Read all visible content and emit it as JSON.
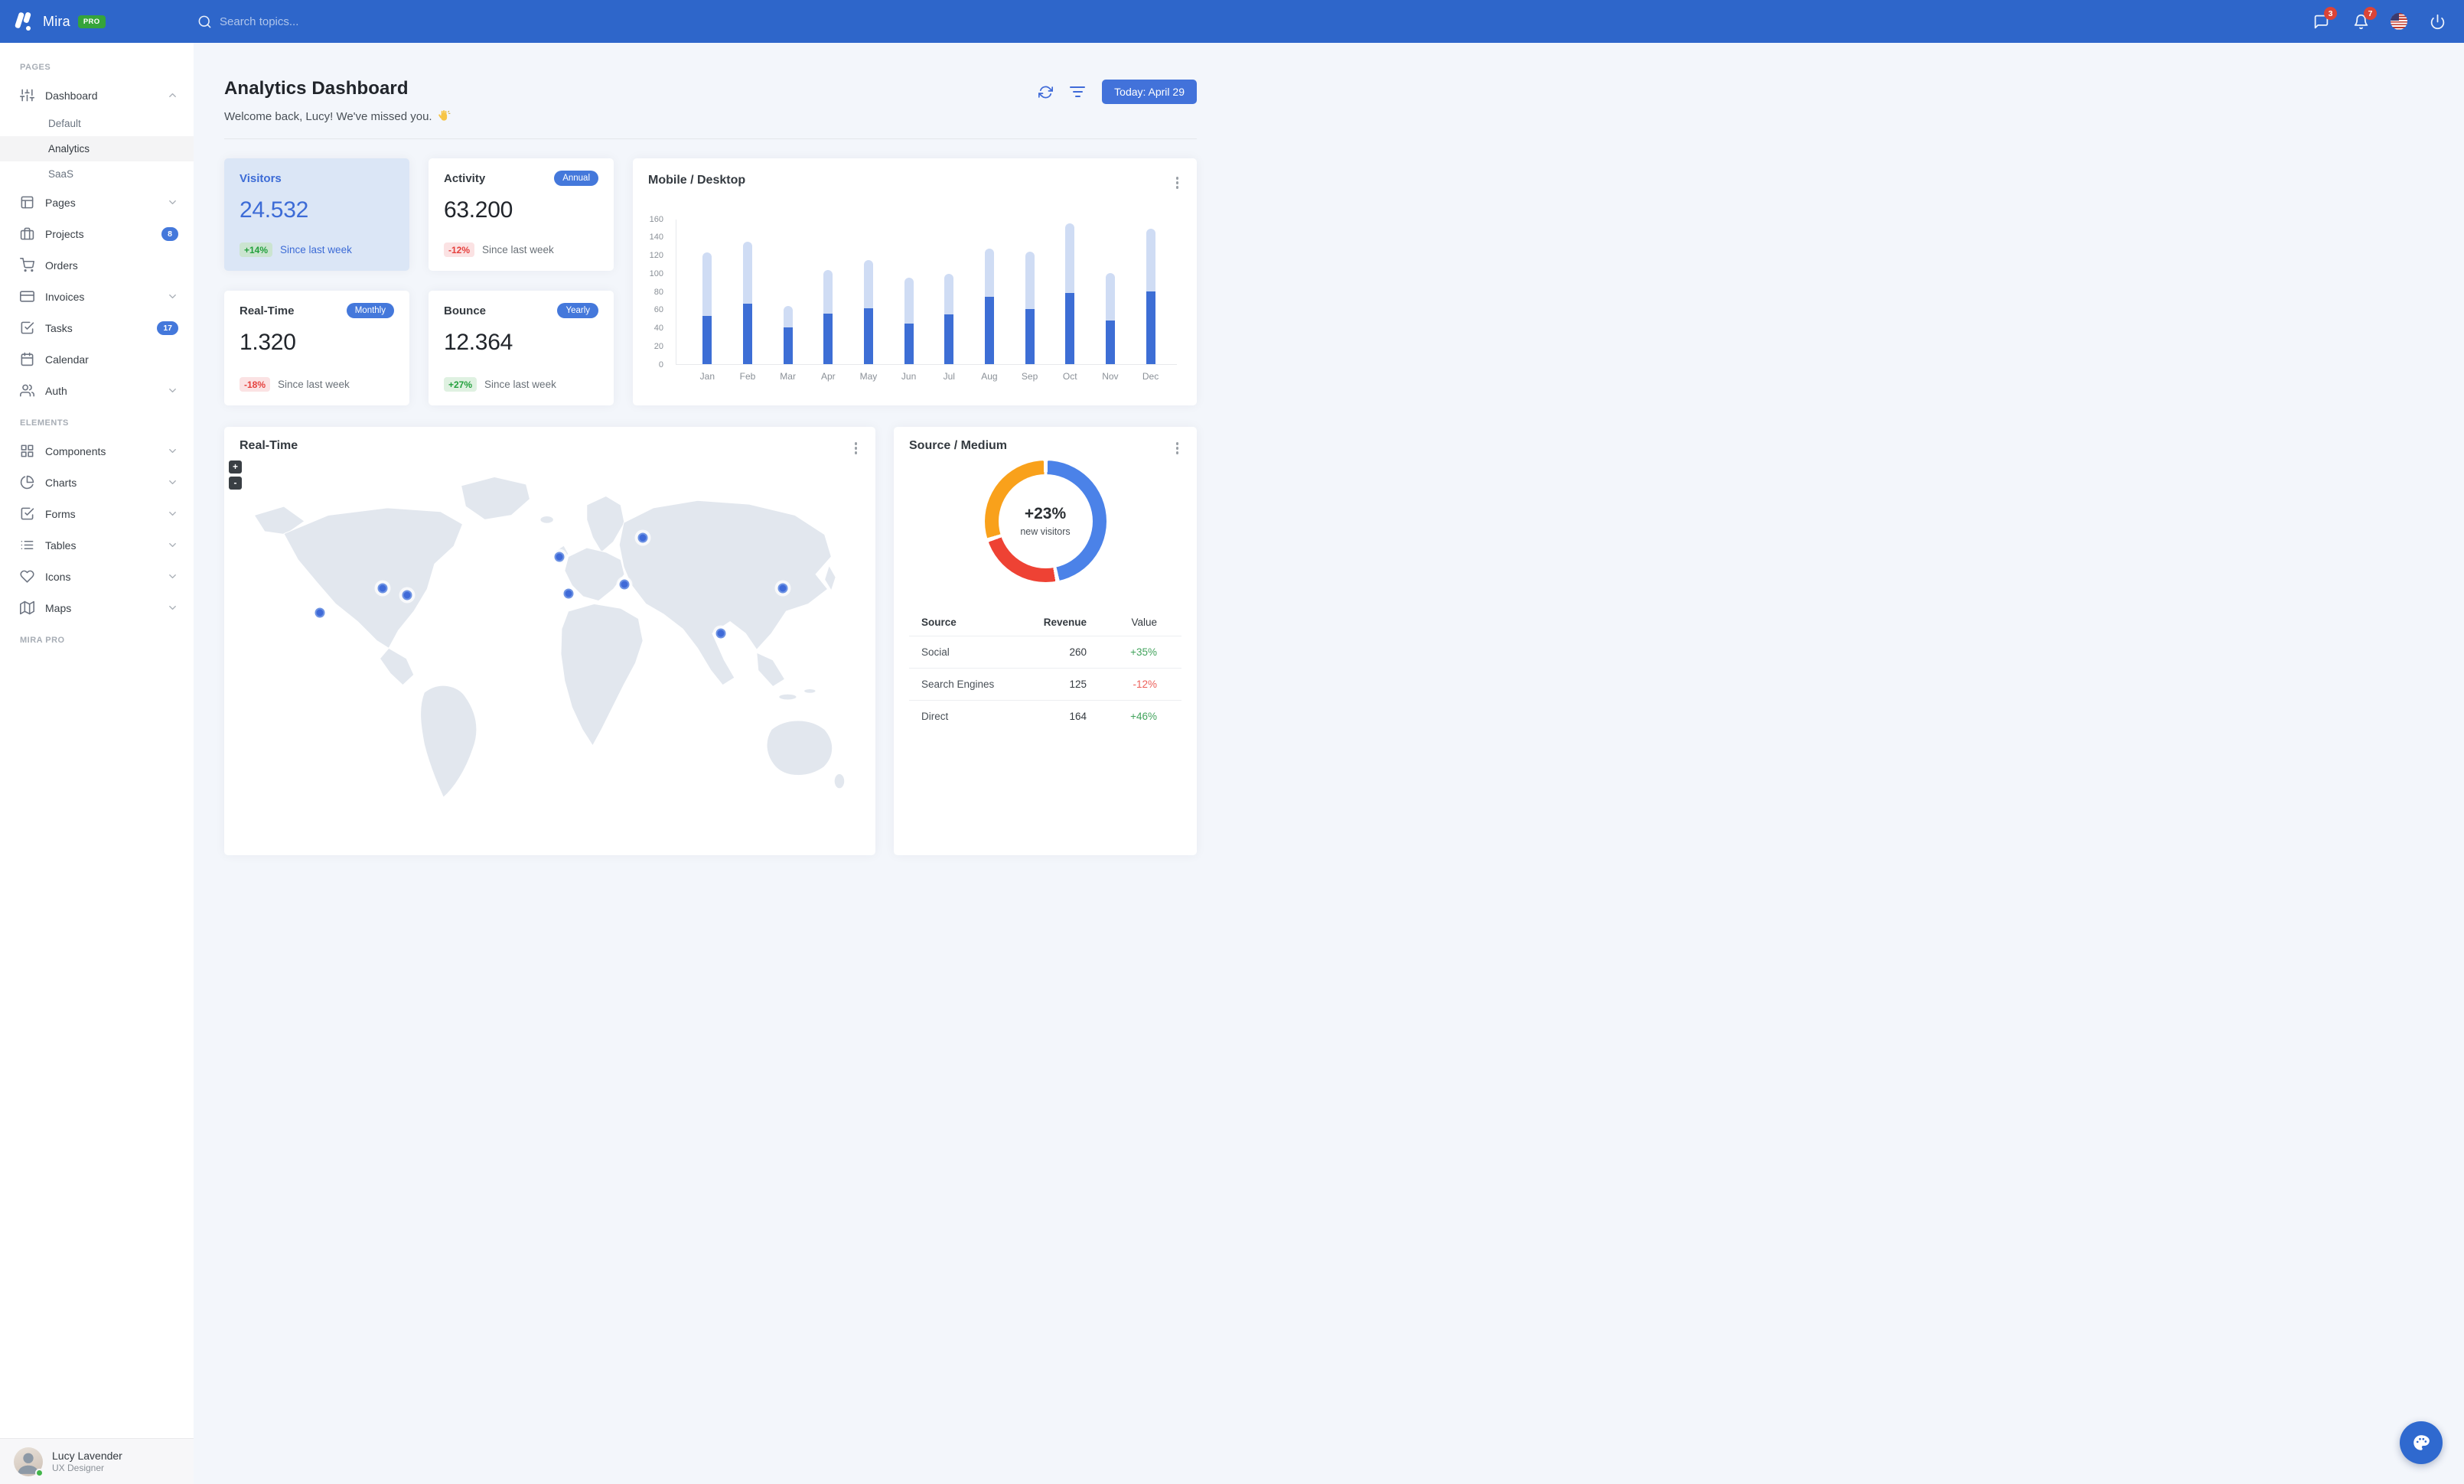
{
  "navbar": {
    "brand": "Mira",
    "brand_badge": "PRO",
    "search_placeholder": "Search topics...",
    "messages_count": "3",
    "notifications_count": "7"
  },
  "sidebar": {
    "sections": [
      {
        "label": "PAGES",
        "items": [
          {
            "label": "Dashboard",
            "icon": "sliders",
            "chevron": "up",
            "open": true,
            "children": [
              {
                "label": "Default"
              },
              {
                "label": "Analytics",
                "active": true
              },
              {
                "label": "SaaS"
              }
            ]
          },
          {
            "label": "Pages",
            "icon": "layout",
            "chevron": "down"
          },
          {
            "label": "Projects",
            "icon": "briefcase",
            "badge": "8"
          },
          {
            "label": "Orders",
            "icon": "cart"
          },
          {
            "label": "Invoices",
            "icon": "credit-card",
            "chevron": "down"
          },
          {
            "label": "Tasks",
            "icon": "check-square",
            "badge": "17"
          },
          {
            "label": "Calendar",
            "icon": "calendar"
          },
          {
            "label": "Auth",
            "icon": "users",
            "chevron": "down"
          }
        ]
      },
      {
        "label": "ELEMENTS",
        "items": [
          {
            "label": "Components",
            "icon": "grid",
            "chevron": "down"
          },
          {
            "label": "Charts",
            "icon": "pie-chart",
            "chevron": "down"
          },
          {
            "label": "Forms",
            "icon": "check-square",
            "chevron": "down"
          },
          {
            "label": "Tables",
            "icon": "list",
            "chevron": "down"
          },
          {
            "label": "Icons",
            "icon": "heart",
            "chevron": "down"
          },
          {
            "label": "Maps",
            "icon": "map",
            "chevron": "down"
          }
        ]
      },
      {
        "label": "MIRA PRO",
        "items": []
      }
    ],
    "user": {
      "name": "Lucy Lavender",
      "role": "UX Designer",
      "status": "online"
    }
  },
  "header": {
    "title": "Analytics Dashboard",
    "welcome": "Welcome back, Lucy! We've missed you.",
    "welcome_emoji": "👋",
    "date_button": "Today: April 29"
  },
  "stats": [
    {
      "title": "Visitors",
      "value": "24.532",
      "delta": "+14%",
      "delta_type": "up",
      "caption": "Since last week",
      "highlight": true
    },
    {
      "title": "Activity",
      "pill": "Annual",
      "value": "63.200",
      "delta": "-12%",
      "delta_type": "down",
      "caption": "Since last week"
    },
    {
      "title": "Real-Time",
      "pill": "Monthly",
      "value": "1.320",
      "delta": "-18%",
      "delta_type": "down",
      "caption": "Since last week"
    },
    {
      "title": "Bounce",
      "pill": "Yearly",
      "value": "12.364",
      "delta": "+27%",
      "delta_type": "up",
      "caption": "Since last week"
    }
  ],
  "chart_data": [
    {
      "type": "bar",
      "title": "Mobile / Desktop",
      "stacked": true,
      "categories": [
        "Jan",
        "Feb",
        "Mar",
        "Apr",
        "May",
        "Jun",
        "Jul",
        "Aug",
        "Sep",
        "Oct",
        "Nov",
        "Dec"
      ],
      "series": [
        {
          "name": "Mobile",
          "color": "#3D6ED5",
          "values": [
            53,
            66,
            40,
            55,
            61,
            44,
            54,
            74,
            60,
            78,
            48,
            80
          ]
        },
        {
          "name": "Desktop",
          "color": "#CFDCF4",
          "values": [
            70,
            68,
            24,
            48,
            53,
            51,
            45,
            53,
            63,
            77,
            52,
            69
          ]
        }
      ],
      "ylabel": "",
      "xlabel": "",
      "ylim": [
        0,
        160
      ],
      "yticks": [
        0,
        20,
        40,
        60,
        80,
        100,
        120,
        140,
        160
      ],
      "grid": false,
      "legend": "none"
    },
    {
      "type": "pie",
      "title": "Source / Medium",
      "subtype": "donut",
      "center_value": "+23%",
      "center_label": "new visitors",
      "slices": [
        {
          "label": "Social",
          "value": 260,
          "color": "#4B82E8"
        },
        {
          "label": "Search Engines",
          "value": 125,
          "color": "#EE4234"
        },
        {
          "label": "Direct",
          "value": 164,
          "color": "#F9A11B"
        }
      ]
    }
  ],
  "map_card": {
    "title": "Real-Time",
    "zoom_in_label": "+",
    "zoom_out_label": "-",
    "markers": [
      {
        "x": 13,
        "y": 43
      },
      {
        "x": 23,
        "y": 36
      },
      {
        "x": 27,
        "y": 38
      },
      {
        "x": 51.5,
        "y": 27
      },
      {
        "x": 53,
        "y": 37.5
      },
      {
        "x": 65,
        "y": 21.5
      },
      {
        "x": 62,
        "y": 35
      },
      {
        "x": 77.5,
        "y": 49
      },
      {
        "x": 87.5,
        "y": 36
      }
    ]
  },
  "source_card": {
    "title": "Source / Medium",
    "table": {
      "headers": [
        "Source",
        "Revenue",
        "Value"
      ],
      "rows": [
        {
          "source": "Social",
          "revenue": "260",
          "value": "+35%",
          "trend": "up"
        },
        {
          "source": "Search Engines",
          "revenue": "125",
          "value": "-12%",
          "trend": "down"
        },
        {
          "source": "Direct",
          "revenue": "164",
          "value": "+46%",
          "trend": "up"
        }
      ]
    }
  },
  "icons": {
    "logo-mark": "two slanted bars with dot",
    "search-icon": "magnifier",
    "messages-icon": "message-square",
    "notifications-icon": "bell",
    "us-flag-icon": "circular US flag",
    "power-icon": "power",
    "waving-hand-icon": "waving hand emoji",
    "refresh-icon": "circular arrows",
    "filter-icon": "three shrinking lines",
    "kebab-menu-icon": "three vertical dots",
    "palette-icon": "color palette",
    "online-dot": "green status dot"
  },
  "colors": {
    "navbar": "#2E66CA",
    "primary": "#4272DA",
    "success": "#22A03C",
    "danger": "#E5403D",
    "highlight_card_bg": "#DBE6F6",
    "page_bg": "#F3F6FB"
  }
}
